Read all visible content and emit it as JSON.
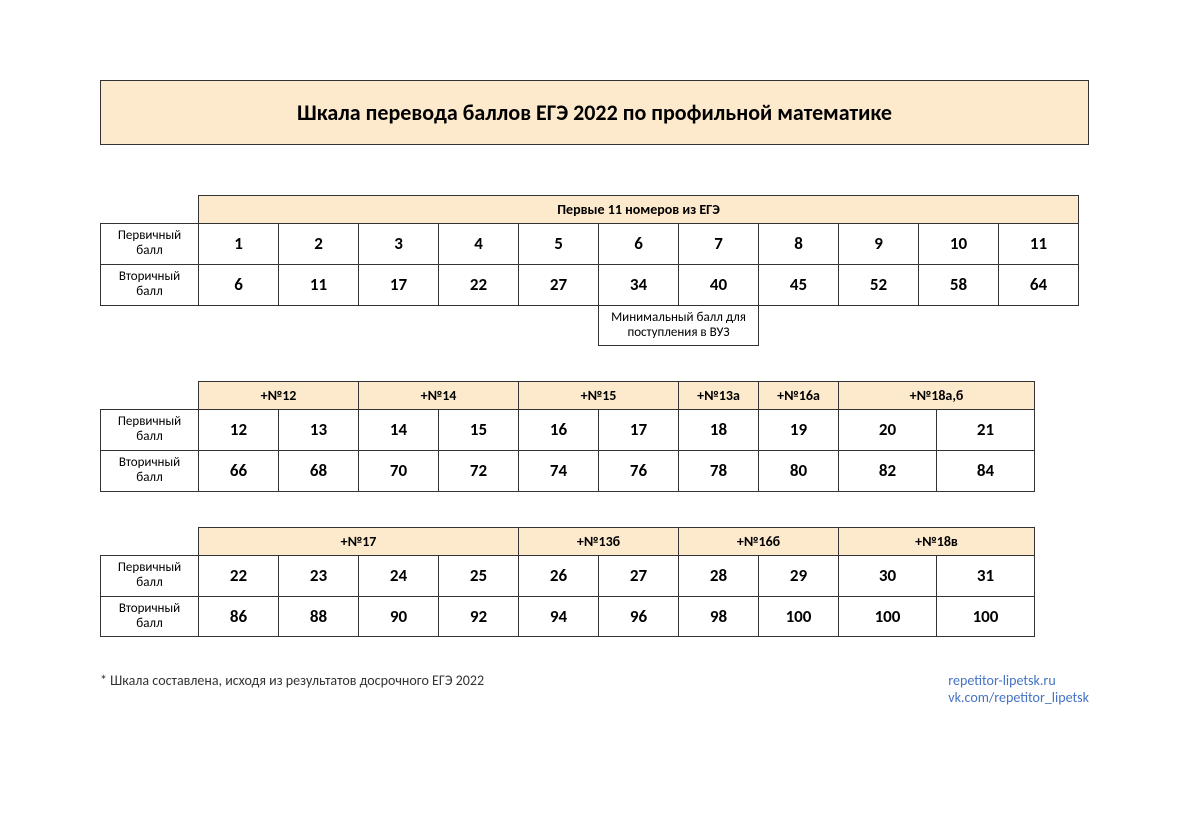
{
  "title": "Шкала перевода баллов ЕГЭ 2022 по профильной математике",
  "colors": {
    "header_bg": "#fdeacc",
    "border": "#333333",
    "link": "#4472c4",
    "bg": "#ffffff"
  },
  "table1": {
    "group_header": "Первые 11 номеров из ЕГЭ",
    "row1_label": "Первичный балл",
    "row2_label": "Вторичный балл",
    "primary": [
      "1",
      "2",
      "3",
      "4",
      "5",
      "6",
      "7",
      "8",
      "9",
      "10",
      "11"
    ],
    "secondary": [
      "6",
      "11",
      "17",
      "22",
      "27",
      "34",
      "40",
      "45",
      "52",
      "58",
      "64"
    ],
    "note": "Минимальный балл для поступления в ВУЗ"
  },
  "table2": {
    "group_headers": [
      "+№12",
      "+№14",
      "+№15",
      "+№13а",
      "+№16а",
      "+№18а,б"
    ],
    "group_spans": [
      2,
      2,
      2,
      1,
      1,
      2
    ],
    "row1_label": "Первичный балл",
    "row2_label": "Вторичный балл",
    "primary": [
      "12",
      "13",
      "14",
      "15",
      "16",
      "17",
      "18",
      "19",
      "20",
      "21"
    ],
    "secondary": [
      "66",
      "68",
      "70",
      "72",
      "74",
      "76",
      "78",
      "80",
      "82",
      "84"
    ]
  },
  "table3": {
    "group_headers": [
      "+№17",
      "+№13б",
      "+№16б",
      "+№18в"
    ],
    "group_spans": [
      4,
      2,
      2,
      2
    ],
    "row1_label": "Первичный балл",
    "row2_label": "Вторичный балл",
    "primary": [
      "22",
      "23",
      "24",
      "25",
      "26",
      "27",
      "28",
      "29",
      "30",
      "31"
    ],
    "secondary": [
      "86",
      "88",
      "90",
      "92",
      "94",
      "96",
      "98",
      "100",
      "100",
      "100"
    ]
  },
  "footnote": "* Шкала составлена, исходя из результатов досрочного ЕГЭ 2022",
  "link1": "repetitor-lipetsk.ru",
  "link2": "vk.com/repetitor_lipetsk"
}
